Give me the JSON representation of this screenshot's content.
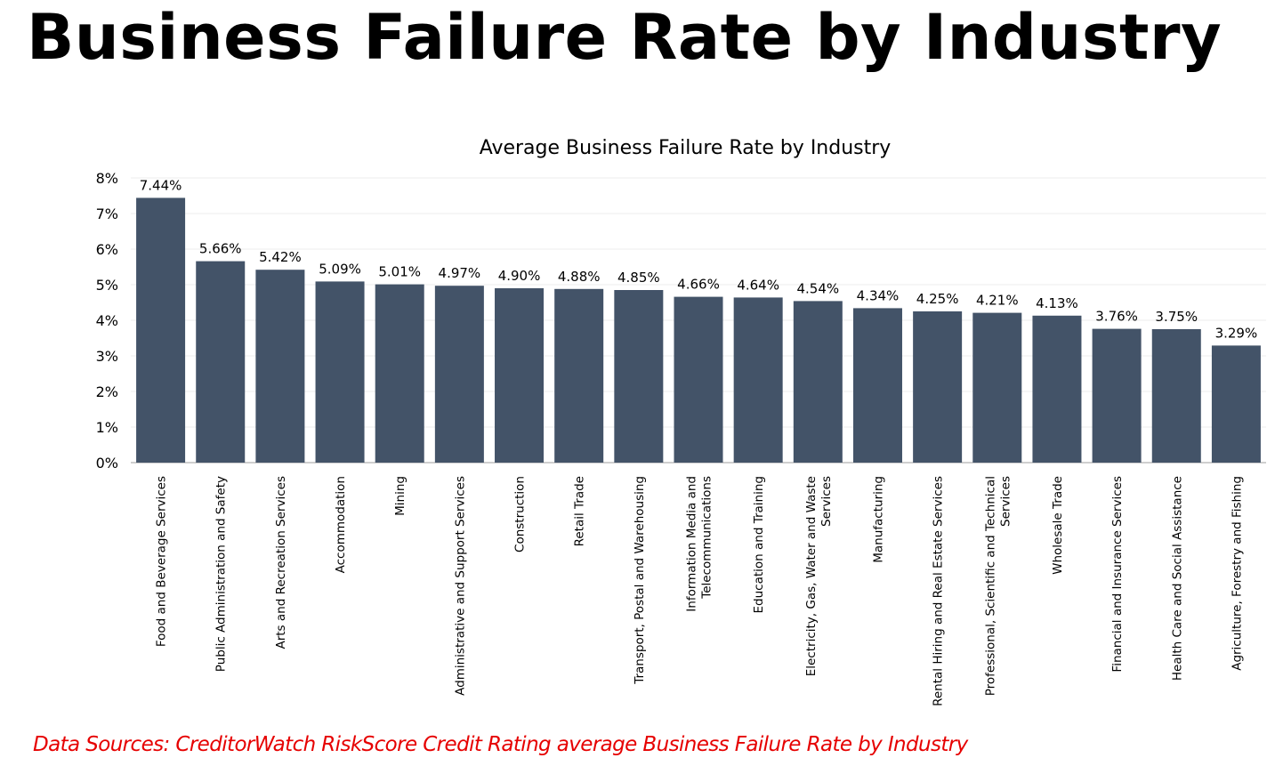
{
  "page": {
    "title": "Business Failure Rate by Industry",
    "source": "Data Sources: CreditorWatch RiskScore Credit Rating average Business Failure Rate by Industry"
  },
  "colors": {
    "bar": "#435368",
    "source_text": "#e60000",
    "grid": "#ececec",
    "axis": "#bfbfbf"
  },
  "chart_data": {
    "type": "bar",
    "title": "Average Business Failure Rate by Industry",
    "xlabel": "",
    "ylabel": "",
    "ylim": [
      0,
      8
    ],
    "yticks": [
      "0%",
      "1%",
      "2%",
      "3%",
      "4%",
      "5%",
      "6%",
      "7%",
      "8%"
    ],
    "grid": true,
    "categories": [
      [
        "Food and Beverage Services"
      ],
      [
        "Public Administration and Safety"
      ],
      [
        "Arts and Recreation Services"
      ],
      [
        "Accommodation"
      ],
      [
        "Mining"
      ],
      [
        "Administrative and Support Services"
      ],
      [
        "Construction"
      ],
      [
        "Retail Trade"
      ],
      [
        "Transport, Postal and Warehousing"
      ],
      [
        "Information Media and",
        "Telecommunications"
      ],
      [
        "Education and Training"
      ],
      [
        "Electricity, Gas, Water and Waste",
        "Services"
      ],
      [
        "Manufacturing"
      ],
      [
        "Rental Hiring and Real Estate Services"
      ],
      [
        "Professional, Scientific and Technical",
        "Services"
      ],
      [
        "Wholesale Trade"
      ],
      [
        "Financial and Insurance Services"
      ],
      [
        "Health Care and Social Assistance"
      ],
      [
        "Agriculture, Forestry and Fishing"
      ]
    ],
    "values": [
      7.44,
      5.66,
      5.42,
      5.09,
      5.01,
      4.97,
      4.9,
      4.88,
      4.85,
      4.66,
      4.64,
      4.54,
      4.34,
      4.25,
      4.21,
      4.13,
      3.76,
      3.75,
      3.29
    ],
    "data_labels": [
      "7.44%",
      "5.66%",
      "5.42%",
      "5.09%",
      "5.01%",
      "4.97%",
      "4.90%",
      "4.88%",
      "4.85%",
      "4.66%",
      "4.64%",
      "4.54%",
      "4.34%",
      "4.25%",
      "4.21%",
      "4.13%",
      "3.76%",
      "3.75%",
      "3.29%"
    ]
  }
}
